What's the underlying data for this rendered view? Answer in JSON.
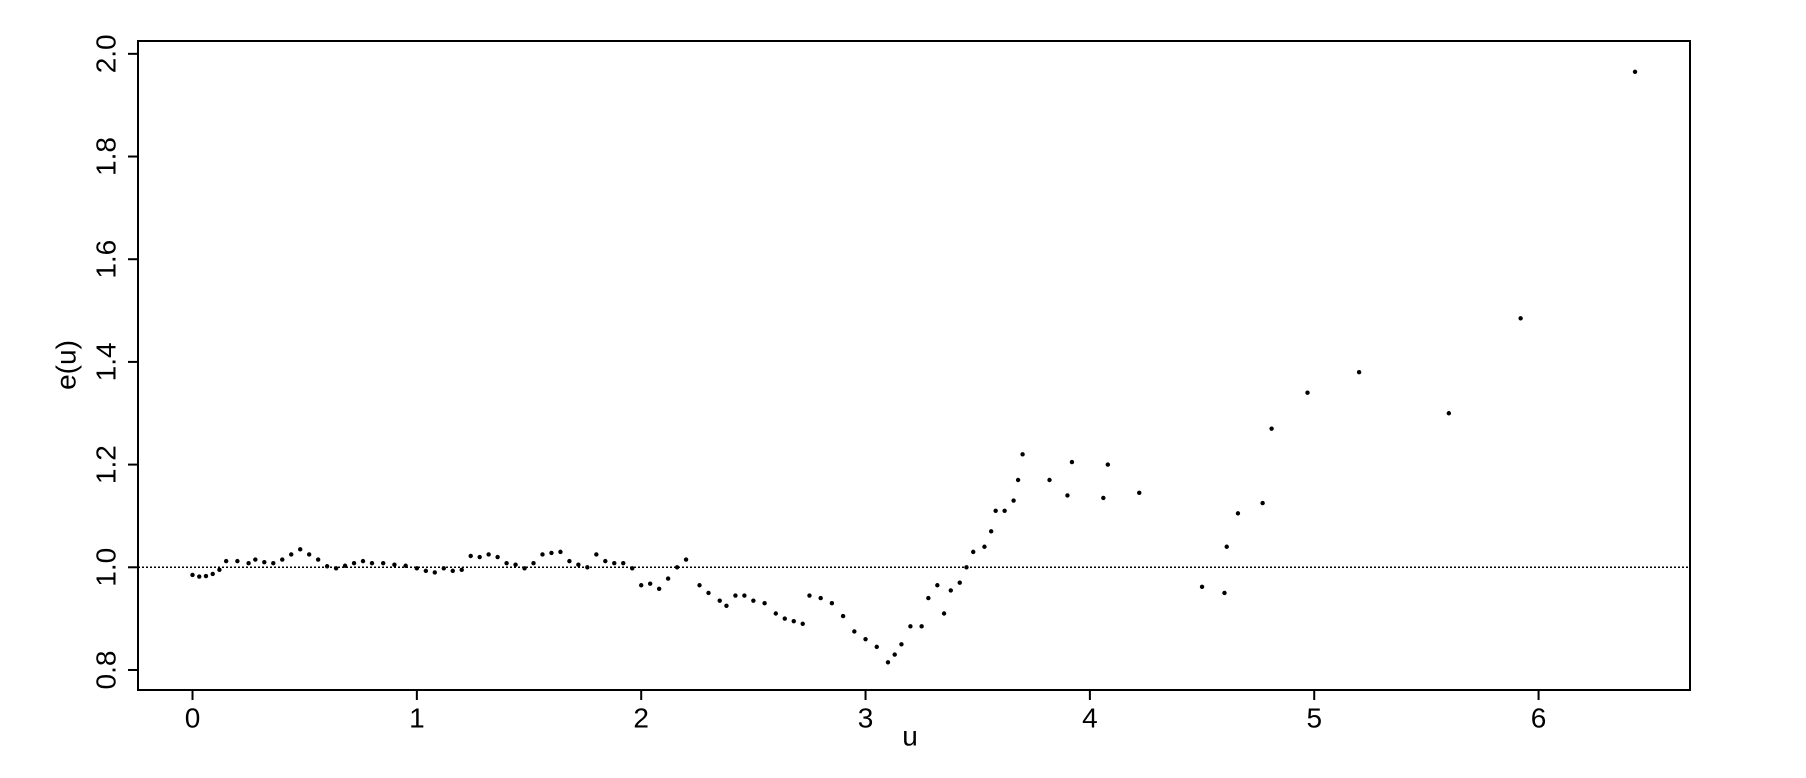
{
  "chart_data": {
    "type": "scatter",
    "x_label": "u",
    "y_label": "e(u)",
    "xlim": [
      -0.243,
      6.675
    ],
    "ylim": [
      0.761,
      2.025
    ],
    "xticks": [
      0,
      1,
      2,
      3,
      4,
      5,
      6
    ],
    "yticks": [
      0.8,
      {
        "value": 1,
        "label": "1.0"
      },
      1.2,
      1.4,
      1.6,
      1.8,
      {
        "value": 2,
        "label": "2.0"
      }
    ],
    "hline": 1,
    "color": "#000000",
    "x": [
      0.0,
      0.03,
      0.06,
      0.09,
      0.12,
      0.15,
      0.2,
      0.25,
      0.28,
      0.32,
      0.36,
      0.4,
      0.44,
      0.48,
      0.52,
      0.56,
      0.6,
      0.64,
      0.68,
      0.72,
      0.76,
      0.8,
      0.85,
      0.9,
      0.95,
      1.0,
      1.04,
      1.08,
      1.12,
      1.16,
      1.2,
      1.24,
      1.28,
      1.32,
      1.36,
      1.4,
      1.44,
      1.48,
      1.52,
      1.56,
      1.6,
      1.64,
      1.68,
      1.72,
      1.76,
      1.8,
      1.84,
      1.88,
      1.92,
      1.96,
      2.0,
      2.04,
      2.08,
      2.12,
      2.16,
      2.2,
      2.26,
      2.3,
      2.35,
      2.38,
      2.42,
      2.46,
      2.5,
      2.55,
      2.6,
      2.64,
      2.68,
      2.72,
      2.75,
      2.8,
      2.85,
      2.9,
      2.95,
      3.0,
      3.05,
      3.1,
      3.13,
      3.16,
      3.2,
      3.25,
      3.28,
      3.32,
      3.35,
      3.38,
      3.42,
      3.45,
      3.48,
      3.53,
      3.56,
      3.58,
      3.62,
      3.66,
      3.68,
      3.7,
      3.82,
      3.9,
      3.92,
      4.06,
      4.08,
      4.22,
      4.5,
      4.6,
      4.61,
      4.66,
      4.77,
      4.81,
      4.97,
      5.2,
      5.6,
      5.92,
      6.43
    ],
    "values": [
      0.985,
      0.982,
      0.983,
      0.987,
      0.995,
      1.012,
      1.012,
      1.008,
      1.015,
      1.01,
      1.008,
      1.015,
      1.025,
      1.035,
      1.025,
      1.015,
      1.002,
      0.998,
      1.003,
      1.008,
      1.012,
      1.008,
      1.008,
      1.005,
      1.003,
      0.998,
      0.993,
      0.99,
      0.998,
      0.993,
      0.995,
      1.022,
      1.02,
      1.025,
      1.02,
      1.008,
      1.005,
      0.998,
      1.008,
      1.025,
      1.028,
      1.03,
      1.012,
      1.005,
      1.0,
      1.025,
      1.012,
      1.008,
      1.008,
      0.998,
      0.965,
      0.968,
      0.958,
      0.978,
      1.0,
      1.015,
      0.965,
      0.95,
      0.935,
      0.925,
      0.945,
      0.945,
      0.935,
      0.93,
      0.91,
      0.9,
      0.895,
      0.89,
      0.945,
      0.94,
      0.93,
      0.905,
      0.875,
      0.86,
      0.845,
      0.815,
      0.83,
      0.85,
      0.885,
      0.885,
      0.94,
      0.965,
      0.91,
      0.955,
      0.97,
      1.0,
      1.03,
      1.04,
      1.07,
      1.11,
      1.11,
      1.13,
      1.17,
      1.22,
      1.17,
      1.14,
      1.205,
      1.135,
      1.2,
      1.145,
      0.962,
      0.95,
      1.04,
      1.105,
      1.125,
      1.27,
      1.34,
      1.38,
      1.3,
      1.485,
      1.965
    ]
  }
}
